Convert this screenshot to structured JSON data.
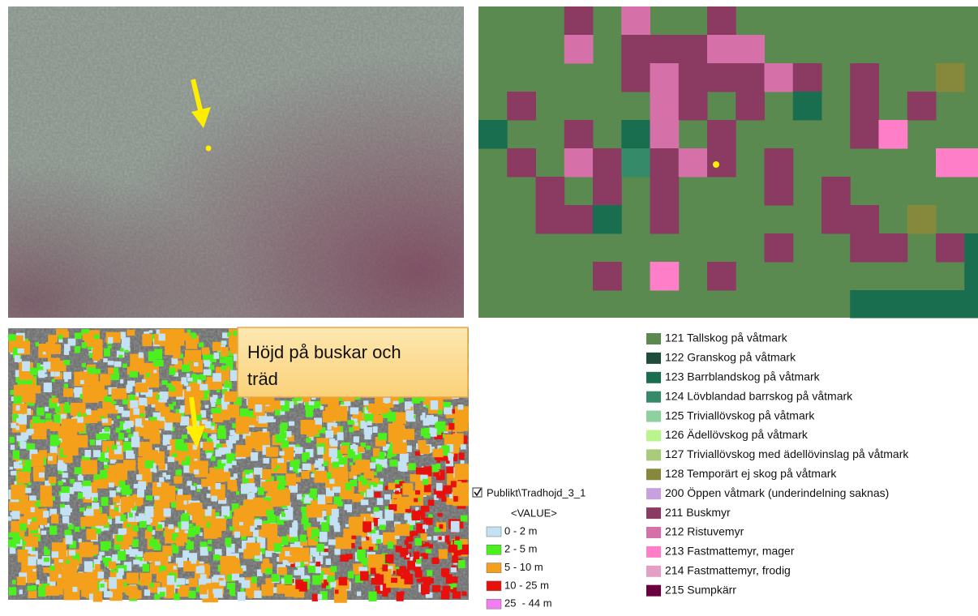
{
  "label_box": "Höjd på buskar och träd",
  "height_legend": {
    "layer": "Publikt\\Tradhojd_3_1",
    "field": "<VALUE>",
    "items": [
      {
        "label": "0 - 2 m",
        "color": "#c4e2f4"
      },
      {
        "label": "2 - 5 m",
        "color": "#4cf01e"
      },
      {
        "label": "5 - 10 m",
        "color": "#f5a01a"
      },
      {
        "label": "10 - 25 m",
        "color": "#e8100c"
      },
      {
        "label": "25  - 44 m",
        "color": "#f07ef0"
      }
    ]
  },
  "landcover_legend": {
    "items": [
      {
        "label": "121 Tallskog på våtmark",
        "color": "#5a8a50"
      },
      {
        "label": "122 Granskog på våtmark",
        "color": "#1f4d3a"
      },
      {
        "label": "123 Barrblandskog på våtmark",
        "color": "#1a6e50"
      },
      {
        "label": "124 Lövblandad barrskog på våtmark",
        "color": "#358a6a"
      },
      {
        "label": "125 Triviallövskog på våtmark",
        "color": "#8fd0a0"
      },
      {
        "label": "126 Ädellövskog på våtmark",
        "color": "#b8f58c"
      },
      {
        "label": "127 Triviallövskog med ädellövinslag på våtmark",
        "color": "#a8cc7a"
      },
      {
        "label": "128 Temporärt ej skog på våtmark",
        "color": "#86883c"
      },
      {
        "label": "200 Öppen våtmark (underindelning saknas)",
        "color": "#c8a0e0"
      },
      {
        "label": "211 Buskmyr",
        "color": "#8b3a62"
      },
      {
        "label": "212 Ristuvemyr",
        "color": "#d670a8"
      },
      {
        "label": "213 Fastmattemyr, mager",
        "color": "#ff7ec8"
      },
      {
        "label": "214 Fastmattemyr, frodig",
        "color": "#e4a0c4"
      },
      {
        "label": "215 Sumpkärr",
        "color": "#6a0040"
      }
    ]
  }
}
